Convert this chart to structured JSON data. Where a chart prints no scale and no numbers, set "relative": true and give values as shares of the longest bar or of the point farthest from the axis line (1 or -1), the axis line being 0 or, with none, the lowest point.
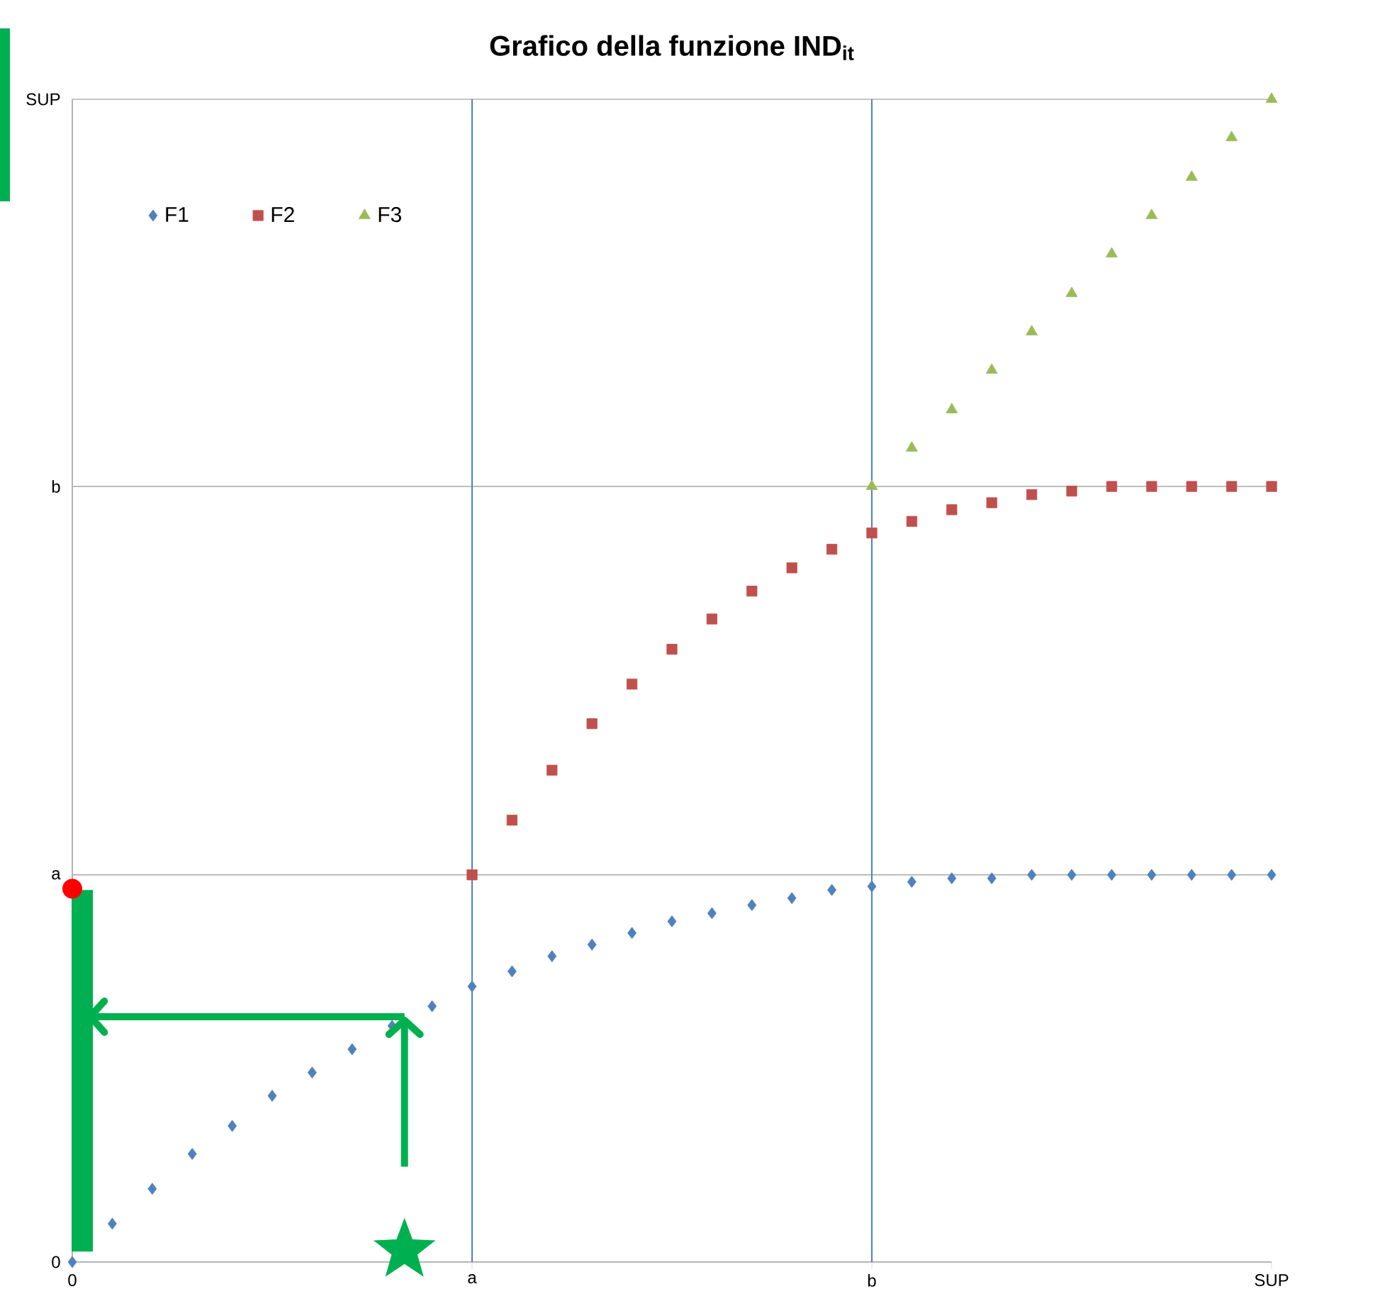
{
  "chart_data": {
    "type": "scatter",
    "title": "Grafico della funzione IND$_{it}$",
    "relative": true,
    "categories": [
      "0",
      null,
      null,
      null,
      null,
      null,
      null,
      null,
      null,
      null,
      "a",
      null,
      null,
      null,
      null,
      null,
      null,
      null,
      null,
      null,
      "b",
      null,
      null,
      null,
      null,
      null,
      null,
      null,
      null,
      null,
      "SUP"
    ],
    "legend": "top left",
    "ref_lines": [
      {
        "axis": "y",
        "value": 0,
        "label": "0",
        "color": "#b3b3b3"
      },
      {
        "axis": "y",
        "value": 0.333,
        "label": "a",
        "color": "#b3b3b3"
      },
      {
        "axis": "y",
        "value": 0.667,
        "label": "b",
        "color": "#b3b3b3"
      },
      {
        "axis": "y",
        "value": 1,
        "label": "SUP",
        "color": "#b3b3b3"
      },
      {
        "axis": "x",
        "value": "0",
        "color": "#b3b3b3"
      },
      {
        "axis": "x",
        "value": "a",
        "color": "#4f81bd"
      },
      {
        "axis": "x",
        "value": "b",
        "color": "#4f81bd"
      }
    ],
    "series": [
      {
        "name": "F1",
        "color": "#4f81bd",
        "marker": "diamond",
        "values": [
          0,
          0.033,
          0.063,
          0.093,
          0.117,
          0.143,
          0.163,
          0.183,
          0.203,
          0.22,
          0.237,
          0.25,
          0.263,
          0.273,
          0.283,
          0.293,
          0.3,
          0.307,
          0.313,
          0.32,
          0.323,
          0.327,
          0.33,
          0.33,
          0.333,
          0.333,
          0.333,
          0.333,
          0.333,
          0.333,
          0.333
        ]
      },
      {
        "name": "F2",
        "color": "#c0504d",
        "marker": "square",
        "values": [
          null,
          null,
          null,
          null,
          null,
          null,
          null,
          null,
          null,
          null,
          0.333,
          0.38,
          0.423,
          0.463,
          0.497,
          0.527,
          0.553,
          0.577,
          0.597,
          0.613,
          0.627,
          0.637,
          0.647,
          0.653,
          0.66,
          0.663,
          0.667,
          0.667,
          0.667,
          0.667,
          0.667
        ]
      },
      {
        "name": "F3",
        "color": "#9bbb59",
        "marker": "triangle",
        "values": [
          null,
          null,
          null,
          null,
          null,
          null,
          null,
          null,
          null,
          null,
          null,
          null,
          null,
          null,
          null,
          null,
          null,
          null,
          null,
          null,
          0.667,
          0.7,
          0.733,
          0.767,
          0.8,
          0.833,
          0.867,
          0.9,
          0.933,
          0.967,
          1
        ]
      }
    ]
  }
}
